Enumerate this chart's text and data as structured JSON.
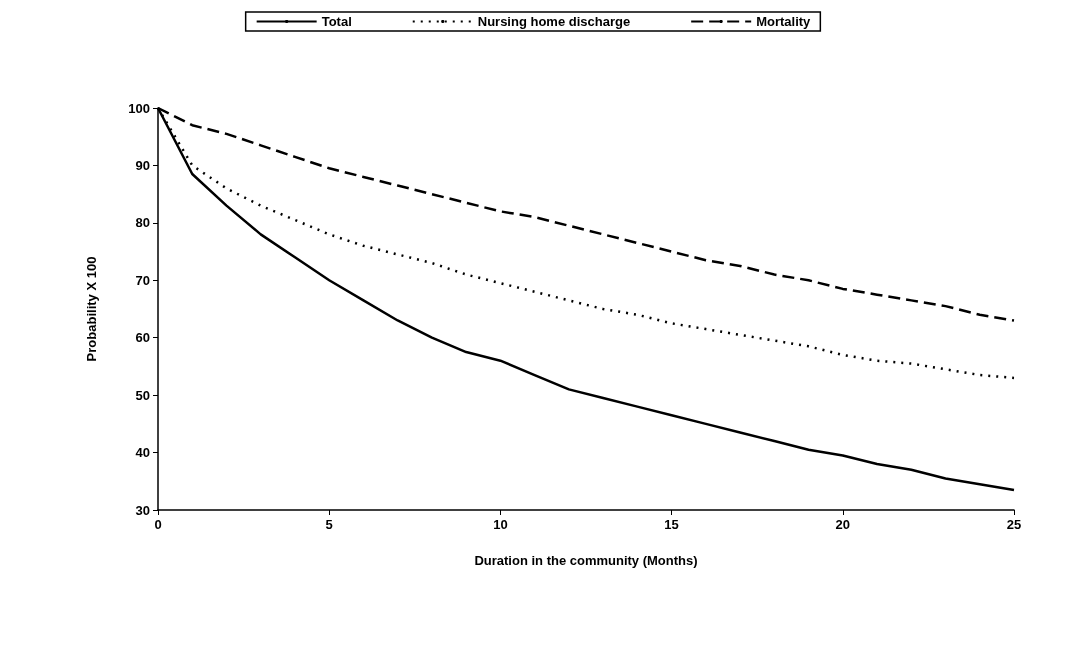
{
  "chart_data": {
    "type": "line",
    "xlabel": "Duration in the community (Months)",
    "ylabel": "Probability X 100",
    "x": [
      0,
      1,
      2,
      3,
      4,
      5,
      6,
      7,
      8,
      9,
      10,
      11,
      12,
      13,
      14,
      15,
      16,
      17,
      18,
      19,
      20,
      21,
      22,
      23,
      24,
      25
    ],
    "xlim": [
      0,
      25
    ],
    "xticks": [
      0,
      5,
      10,
      15,
      20,
      25
    ],
    "ylim": [
      30,
      100
    ],
    "yticks": [
      30,
      40,
      50,
      60,
      70,
      80,
      90,
      100
    ],
    "grid": false,
    "legend": "top",
    "marker": "none",
    "series": [
      {
        "name": "Total",
        "color": "#000000",
        "line_style": "solid",
        "values": [
          100,
          88.5,
          83,
          78,
          74,
          70,
          66.5,
          63,
          60,
          57.5,
          56,
          53.5,
          51,
          49.5,
          48,
          46.5,
          45,
          43.5,
          42,
          40.5,
          39.5,
          38,
          37,
          35.5,
          34.5,
          33.5
        ]
      },
      {
        "name": "Nursing home discharge",
        "color": "#000000",
        "line_style": "dotted",
        "values": [
          100,
          90,
          86,
          83,
          80.5,
          78,
          76,
          74.5,
          73,
          71,
          69.5,
          68,
          66.5,
          65,
          64,
          62.5,
          61.5,
          60.5,
          59.5,
          58.5,
          57,
          56,
          55.5,
          54.5,
          53.5,
          53
        ]
      },
      {
        "name": "Mortality",
        "color": "#000000",
        "line_style": "dashed",
        "values": [
          100,
          97,
          95.5,
          93.5,
          91.5,
          89.5,
          88,
          86.5,
          85,
          83.5,
          82,
          81,
          79.5,
          78,
          76.5,
          75,
          73.5,
          72.5,
          71,
          70,
          68.5,
          67.5,
          66.5,
          65.5,
          64,
          63
        ]
      }
    ]
  }
}
